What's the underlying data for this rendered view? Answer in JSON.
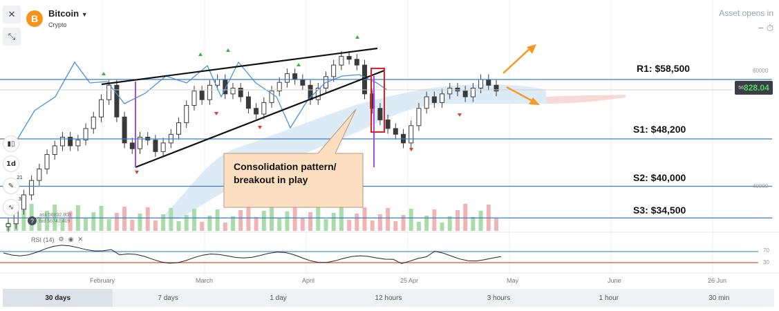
{
  "asset": {
    "name": "Bitcoin",
    "type": "Crypto",
    "logo_letter": "B",
    "opens_label": "Asset opens in",
    "price_tag_small": "56",
    "price_tag_value": "828.04",
    "brand_color": "#f7931a"
  },
  "quote": {
    "ask": "ask 56832.803",
    "bid": "bid 56742.409",
    "help": "?"
  },
  "side_tools": {
    "close_icon": "✕",
    "compress_icon": "⤡",
    "interval": "1d",
    "indicators_count": "21",
    "studies_count": "3"
  },
  "rsi_panel": {
    "label": "RSI (14)",
    "levels": [
      70,
      30
    ],
    "level_labels": [
      "70",
      "30"
    ]
  },
  "price_axis_labels": [
    "60000",
    "40000"
  ],
  "time_axis_labels": [
    "February",
    "March",
    "April",
    "25 Apr",
    "May",
    "June",
    "26 Jun"
  ],
  "timeframes": [
    {
      "label": "30 days",
      "active": true
    },
    {
      "label": "7 days",
      "active": false
    },
    {
      "label": "1 day",
      "active": false
    },
    {
      "label": "12 hours",
      "active": false
    },
    {
      "label": "3 hours",
      "active": false
    },
    {
      "label": "1 hour",
      "active": false
    },
    {
      "label": "30 min",
      "active": false
    }
  ],
  "annotations": {
    "callout": "Consolidation pattern/ breakout in play",
    "levels": [
      {
        "label": "R1: $58,500",
        "value": 58500
      },
      {
        "label": "S1: $48,200",
        "value": 48200
      },
      {
        "label": "S2: $40,000",
        "value": 40000
      },
      {
        "label": "S3: $34,500",
        "value": 34500
      }
    ]
  },
  "chart_data": {
    "type": "candlestick",
    "ylim": [
      33000,
      65000
    ],
    "close_series_approx": [
      33500,
      36000,
      38500,
      41000,
      43000,
      45500,
      47000,
      48500,
      47000,
      48000,
      50000,
      52000,
      55000,
      57500,
      52000,
      47500,
      46500,
      48500,
      48000,
      46000,
      47500,
      49000,
      51000,
      54000,
      56500,
      55000,
      57500,
      58500,
      56000,
      57000,
      55500,
      53500,
      52500,
      54500,
      56500,
      58000,
      59500,
      58500,
      57500,
      55000,
      57000,
      59000,
      61000,
      62500,
      62000,
      61000,
      56000,
      53500,
      51500,
      50000,
      49000,
      47500,
      50500,
      53500,
      55500,
      54500,
      56000,
      57000,
      56500,
      55500,
      57000,
      58500,
      57500,
      56500
    ]
  }
}
